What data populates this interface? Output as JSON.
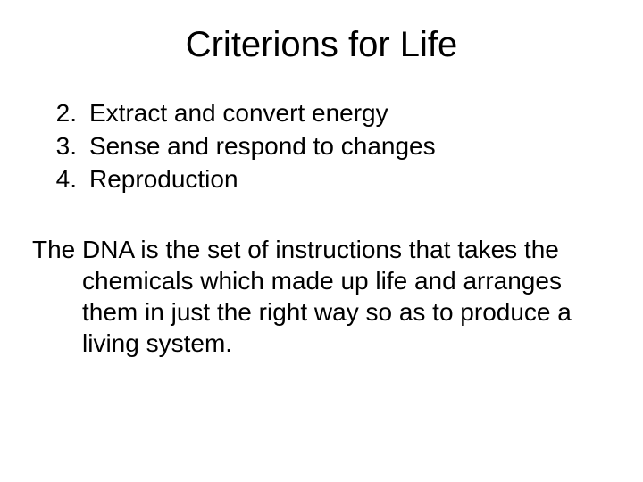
{
  "title": "Criterions for Life",
  "list": {
    "items": [
      {
        "num": "2.",
        "text": "Extract and convert energy"
      },
      {
        "num": "3.",
        "text": "Sense and respond to changes"
      },
      {
        "num": "4.",
        "text": "Reproduction"
      }
    ]
  },
  "paragraph": "The DNA is the set of instructions that takes the chemicals which made up life and arranges them in just the right way so as to produce a living system.",
  "colors": {
    "background": "#ffffff",
    "text": "#000000"
  },
  "typography": {
    "title_fontsize": 40,
    "body_fontsize": 28,
    "font_family": "Arial"
  }
}
